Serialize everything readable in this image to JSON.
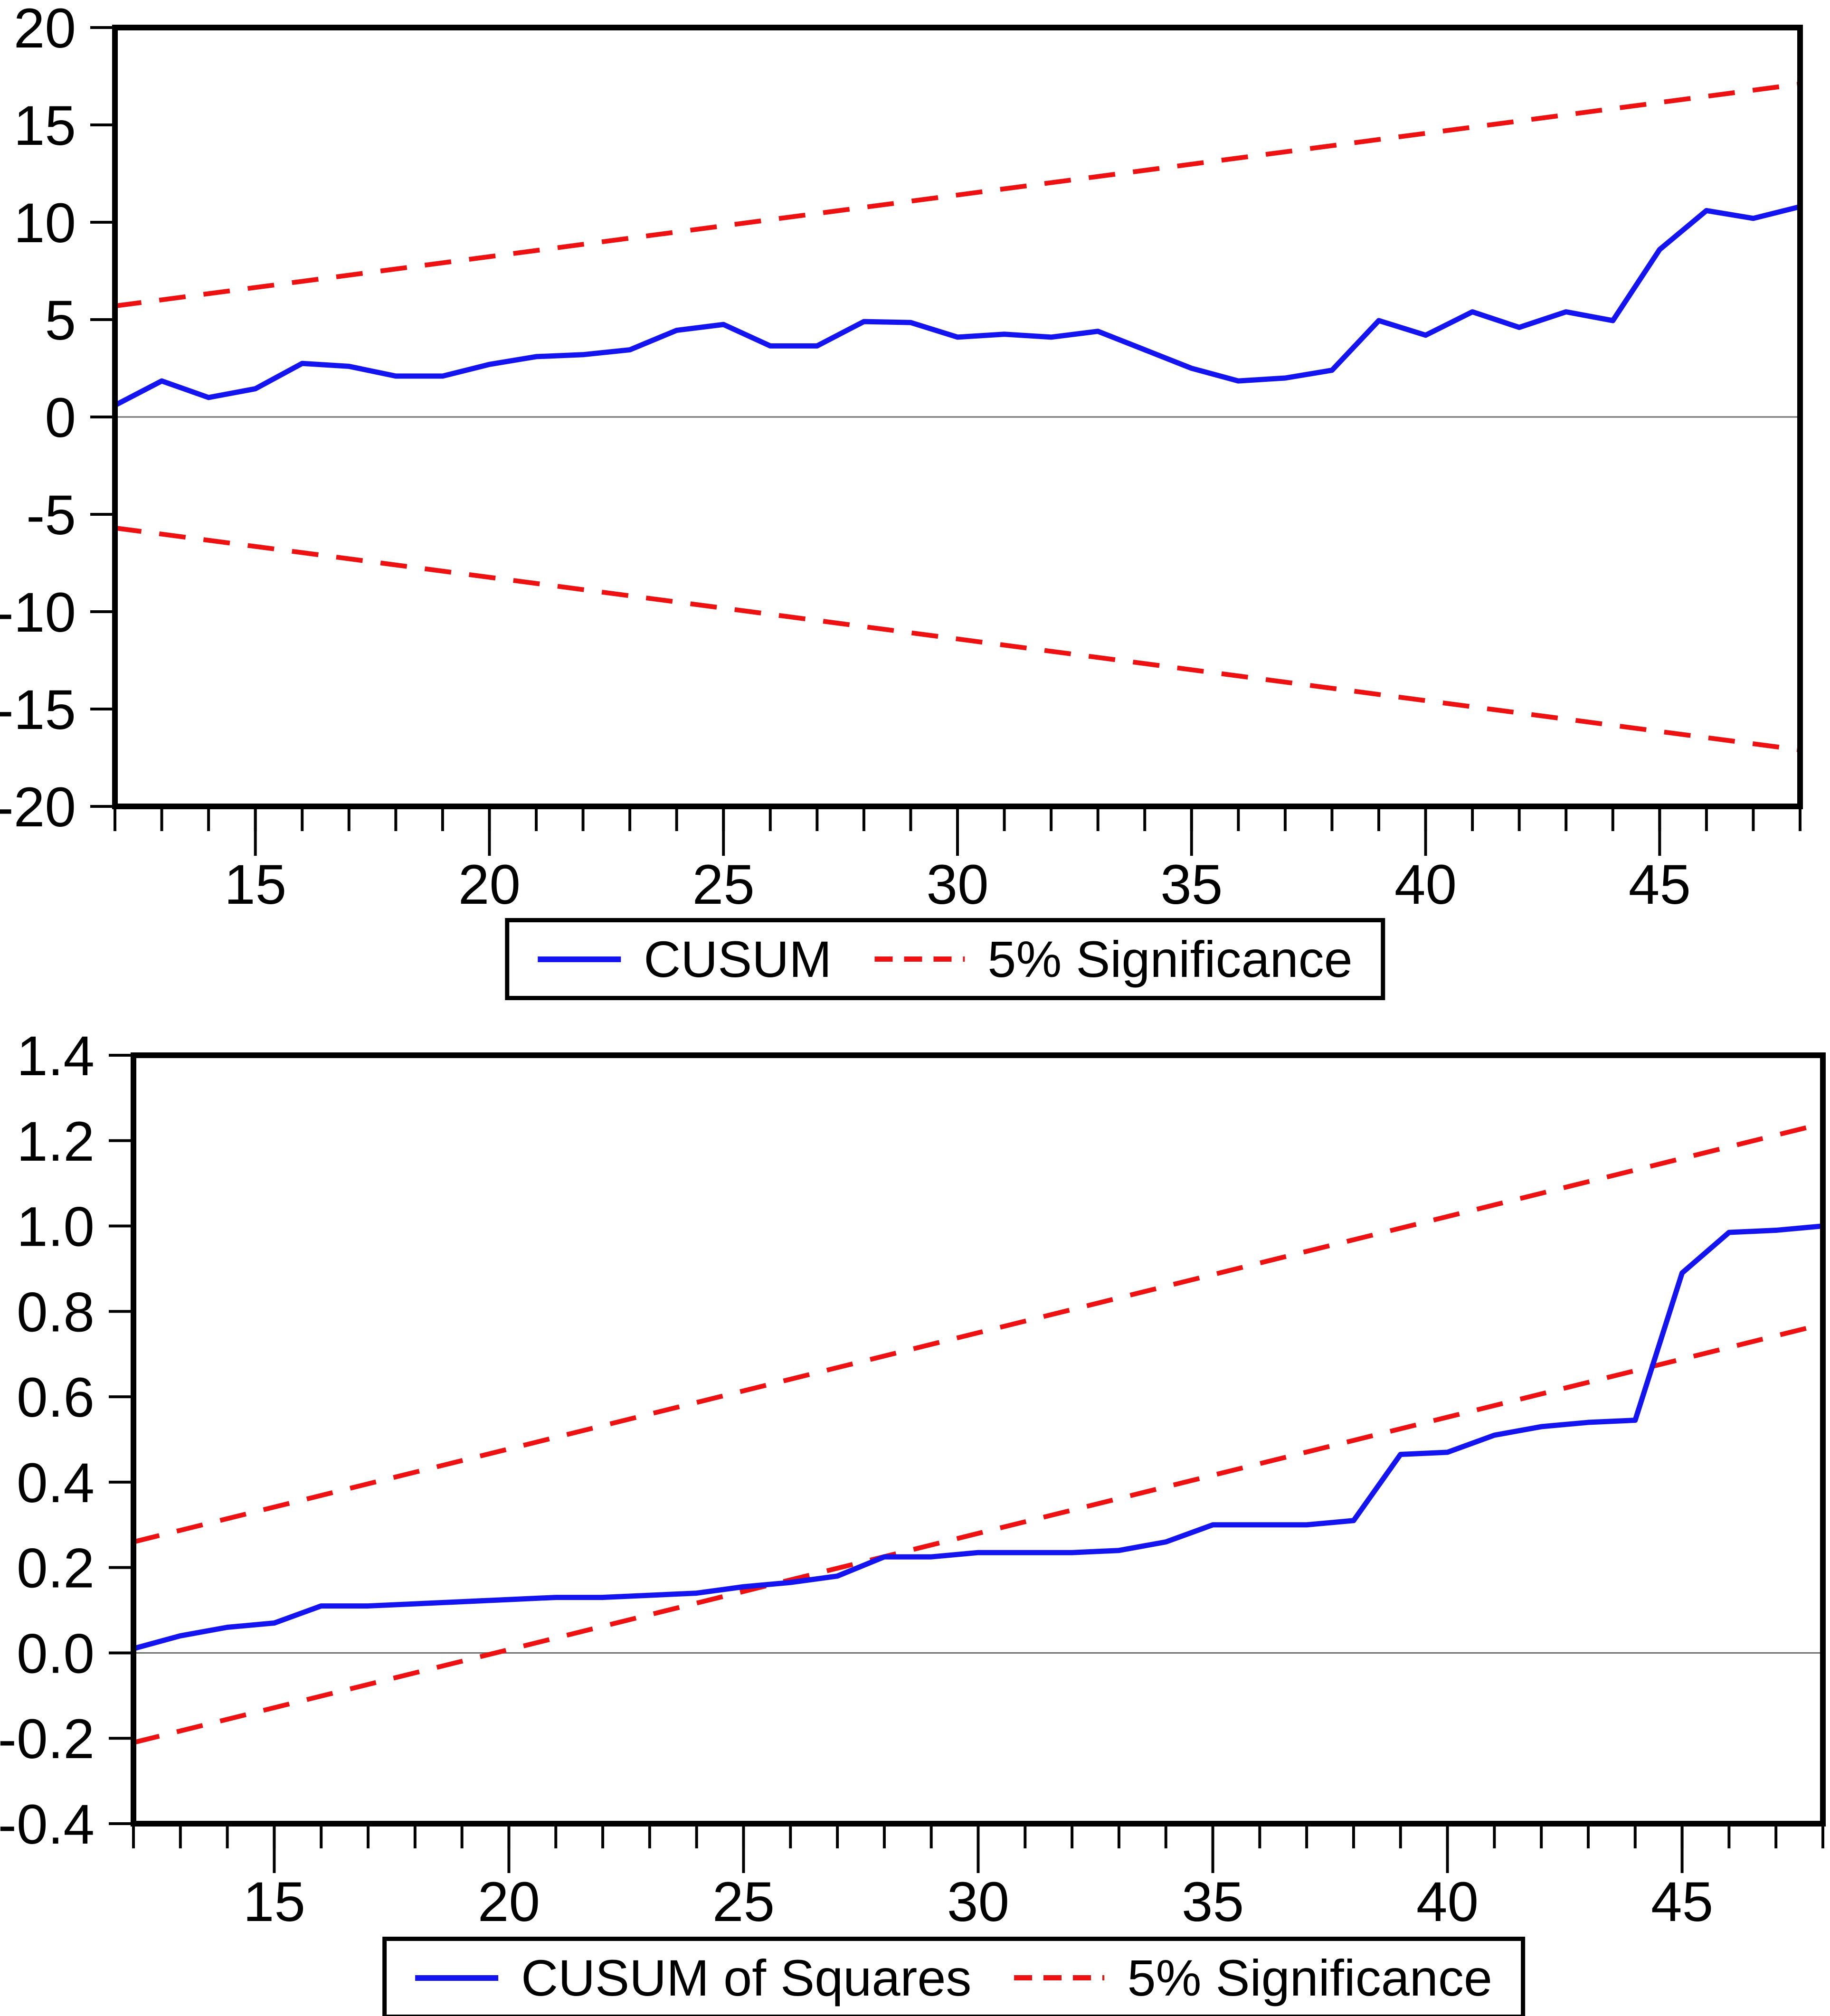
{
  "colors": {
    "blue": "#1414f0",
    "red": "#ee1111",
    "axis": "#000000",
    "zero_line": "#6e6e6e",
    "background": "#ffffff"
  },
  "chart_data": [
    {
      "type": "line",
      "title": "",
      "xlabel": "",
      "ylabel": "",
      "xlim": [
        12,
        48
      ],
      "ylim": [
        -20,
        20
      ],
      "grid": "off",
      "zero_line": true,
      "x": [
        12,
        13,
        14,
        15,
        16,
        17,
        18,
        19,
        20,
        21,
        22,
        23,
        24,
        25,
        26,
        27,
        28,
        29,
        30,
        31,
        32,
        33,
        34,
        35,
        36,
        37,
        38,
        39,
        40,
        41,
        42,
        43,
        44,
        45,
        46,
        47,
        48
      ],
      "series": [
        {
          "name": "CUSUM",
          "style": "solid",
          "color": "blue",
          "values": [
            0.6,
            1.85,
            1.0,
            1.45,
            2.75,
            2.6,
            2.1,
            2.1,
            2.7,
            3.1,
            3.2,
            3.45,
            4.45,
            4.75,
            3.65,
            3.65,
            4.9,
            4.85,
            4.1,
            4.25,
            4.1,
            4.4,
            3.45,
            2.5,
            1.85,
            2.0,
            2.4,
            4.95,
            4.2,
            5.4,
            4.6,
            5.4,
            4.95,
            8.6,
            10.6,
            10.2,
            10.8
          ]
        }
      ],
      "bands": [
        {
          "name": "5% Significance upper bound",
          "style": "dashed",
          "color": "red",
          "points": [
            [
              12,
              5.7
            ],
            [
              48,
              17.1
            ]
          ]
        },
        {
          "name": "5% Significance lower bound",
          "style": "dashed",
          "color": "red",
          "points": [
            [
              12,
              -5.7
            ],
            [
              48,
              -17.1
            ]
          ]
        }
      ],
      "x_ticks": {
        "minor_step": 1,
        "major": [
          {
            "value": 15,
            "label": "15"
          },
          {
            "value": 20,
            "label": "20"
          },
          {
            "value": 25,
            "label": "25"
          },
          {
            "value": 30,
            "label": "30"
          },
          {
            "value": 35,
            "label": "35"
          },
          {
            "value": 40,
            "label": "40"
          },
          {
            "value": 45,
            "label": "45"
          }
        ]
      },
      "y_ticks": [
        {
          "value": 20,
          "label": "20"
        },
        {
          "value": 15,
          "label": "15"
        },
        {
          "value": 10,
          "label": "10"
        },
        {
          "value": 5,
          "label": "5"
        },
        {
          "value": 0,
          "label": "0"
        },
        {
          "value": -5,
          "label": "-5"
        },
        {
          "value": -10,
          "label": "-10"
        },
        {
          "value": -15,
          "label": "-15"
        },
        {
          "value": -20,
          "label": "-20"
        }
      ],
      "legend": {
        "position": "below",
        "items": [
          {
            "label": "CUSUM",
            "style": "solid",
            "color": "blue"
          },
          {
            "label": "5% Significance",
            "style": "dashed",
            "color": "red"
          }
        ]
      }
    },
    {
      "type": "line",
      "title": "",
      "xlabel": "",
      "ylabel": "",
      "xlim": [
        12,
        48
      ],
      "ylim": [
        -0.4,
        1.4
      ],
      "grid": "off",
      "zero_line": true,
      "x": [
        12,
        13,
        14,
        15,
        16,
        17,
        18,
        19,
        20,
        21,
        22,
        23,
        24,
        25,
        26,
        27,
        28,
        29,
        30,
        31,
        32,
        33,
        34,
        35,
        36,
        37,
        38,
        39,
        40,
        41,
        42,
        43,
        44,
        45,
        46,
        47,
        48
      ],
      "series": [
        {
          "name": "CUSUM of Squares",
          "style": "solid",
          "color": "blue",
          "values": [
            0.01,
            0.04,
            0.06,
            0.07,
            0.11,
            0.11,
            0.115,
            0.12,
            0.125,
            0.13,
            0.13,
            0.135,
            0.14,
            0.155,
            0.165,
            0.18,
            0.225,
            0.225,
            0.235,
            0.235,
            0.235,
            0.24,
            0.26,
            0.3,
            0.3,
            0.3,
            0.31,
            0.465,
            0.47,
            0.51,
            0.53,
            0.54,
            0.545,
            0.89,
            0.985,
            0.99,
            1.0
          ]
        }
      ],
      "bands": [
        {
          "name": "5% Significance upper bound",
          "style": "dashed",
          "color": "red",
          "points": [
            [
              12,
              0.26
            ],
            [
              48,
              1.24
            ]
          ]
        },
        {
          "name": "5% Significance lower bound",
          "style": "dashed",
          "color": "red",
          "points": [
            [
              12,
              -0.21
            ],
            [
              48,
              0.77
            ]
          ]
        }
      ],
      "x_ticks": {
        "minor_step": 1,
        "major": [
          {
            "value": 15,
            "label": "15"
          },
          {
            "value": 20,
            "label": "20"
          },
          {
            "value": 25,
            "label": "25"
          },
          {
            "value": 30,
            "label": "30"
          },
          {
            "value": 35,
            "label": "35"
          },
          {
            "value": 40,
            "label": "40"
          },
          {
            "value": 45,
            "label": "45"
          }
        ]
      },
      "y_ticks": [
        {
          "value": 1.4,
          "label": "1.4"
        },
        {
          "value": 1.2,
          "label": "1.2"
        },
        {
          "value": 1.0,
          "label": "1.0"
        },
        {
          "value": 0.8,
          "label": "0.8"
        },
        {
          "value": 0.6,
          "label": "0.6"
        },
        {
          "value": 0.4,
          "label": "0.4"
        },
        {
          "value": 0.2,
          "label": "0.2"
        },
        {
          "value": 0.0,
          "label": "0.0"
        },
        {
          "value": -0.2,
          "label": "-0.2"
        },
        {
          "value": -0.4,
          "label": "-0.4"
        }
      ],
      "legend": {
        "position": "below",
        "items": [
          {
            "label": "CUSUM of Squares",
            "style": "solid",
            "color": "blue"
          },
          {
            "label": "5% Significance",
            "style": "dashed",
            "color": "red"
          }
        ]
      }
    }
  ]
}
